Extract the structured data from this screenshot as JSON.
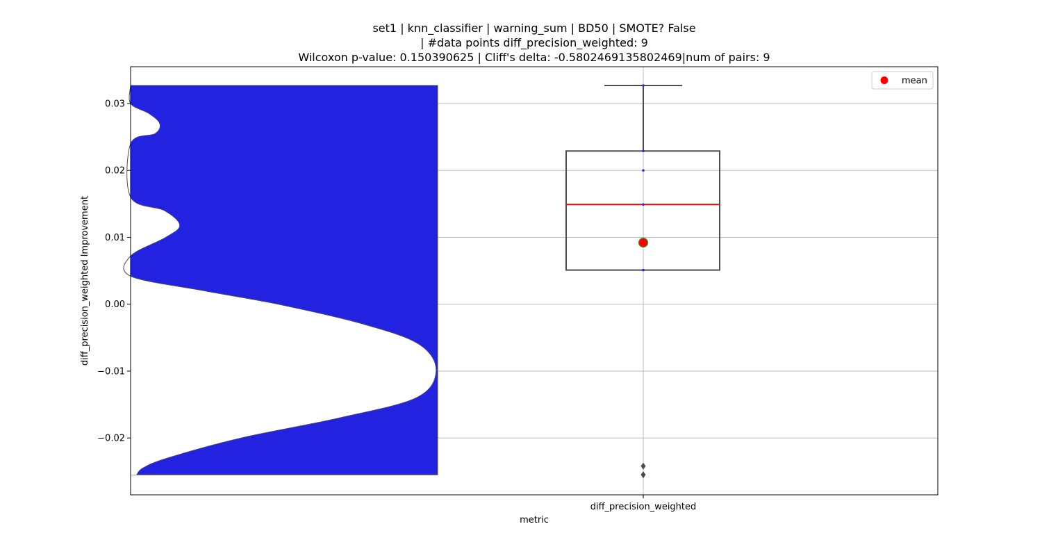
{
  "chart_data": {
    "type": "violin+box",
    "title_lines": [
      "set1 | knn_classifier | warning_sum | BD50 | SMOTE? False",
      "| #data points diff_precision_weighted: 9",
      "Wilcoxon p-value: 0.150390625 | Cliff's delta: -0.5802469135802469|num of pairs: 9"
    ],
    "xlabel": "metric",
    "ylabel": "diff_precision_weighted Improvement",
    "categories": [
      "diff_precision_weighted"
    ],
    "ylim": [
      -0.0285,
      0.0355
    ],
    "yticks": [
      -0.02,
      -0.01,
      0.0,
      0.01,
      0.02,
      0.03
    ],
    "ytick_labels": [
      "−0.02",
      "−0.01",
      "0.00",
      "0.01",
      "0.02",
      "0.03"
    ],
    "grid": true,
    "legend": {
      "placement": "top-right",
      "entries": [
        {
          "label": "mean",
          "color": "#ff0000"
        }
      ]
    },
    "box": {
      "q1": 0.0051,
      "median": 0.0149,
      "q3": 0.0229,
      "whisker_low": 0.0051,
      "whisker_high": 0.0327,
      "mean": 0.0092,
      "outliers": [
        -0.0242,
        -0.0255
      ],
      "points": [
        0.0327,
        0.0229,
        0.02,
        0.0149,
        0.0051
      ],
      "box_color": "#4d4d4d",
      "median_color": "#ff0000",
      "mean_color": "#ff0000",
      "mean_edge_color": "#2ca02c"
    },
    "violin": {
      "fill_color": "#2222e0",
      "edge_color": "#4d4d4d",
      "density_profile": [
        [
          0.0327,
          0.0
        ],
        [
          0.03,
          0.0
        ],
        [
          0.0285,
          0.06
        ],
        [
          0.027,
          0.095
        ],
        [
          0.0255,
          0.08
        ],
        [
          0.024,
          0.0
        ],
        [
          0.016,
          0.0
        ],
        [
          0.014,
          0.11
        ],
        [
          0.0118,
          0.16
        ],
        [
          0.01,
          0.115
        ],
        [
          0.0072,
          0.0
        ],
        [
          0.0042,
          0.0
        ],
        [
          0.002,
          0.24
        ],
        [
          0.0,
          0.48
        ],
        [
          -0.003,
          0.76
        ],
        [
          -0.006,
          0.94
        ],
        [
          -0.01,
          0.995
        ],
        [
          -0.014,
          0.93
        ],
        [
          -0.017,
          0.68
        ],
        [
          -0.02,
          0.36
        ],
        [
          -0.023,
          0.12
        ],
        [
          -0.0245,
          0.04
        ],
        [
          -0.0255,
          0.02
        ]
      ]
    }
  }
}
